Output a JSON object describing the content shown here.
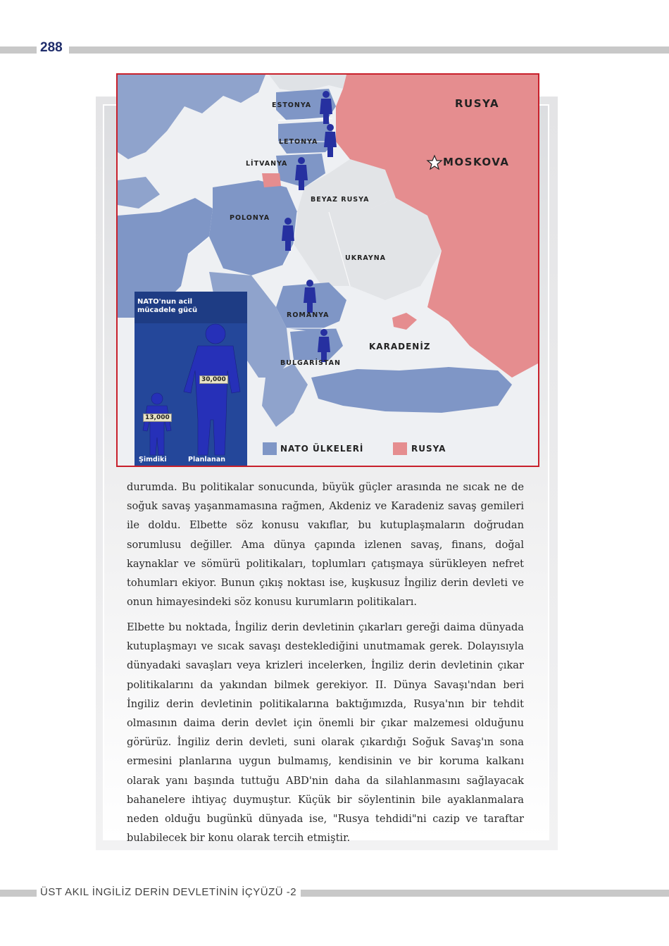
{
  "page": {
    "number": "288",
    "footer_title": "ÜST AKIL İNGİLİZ DERİN DEVLETİNİN İÇYÜZÜ -2"
  },
  "colors": {
    "nato": "#7f96c6",
    "russia": "#e58d8f",
    "neutral": "#e2e4e7",
    "soldier": "#2630a0",
    "border_red": "#c8202b"
  },
  "map": {
    "labels": {
      "estonya": "ESTONYA",
      "letonya": "LETONYA",
      "litvanya": "LİTVANYA",
      "beyaz_rusya": "BEYAZ RUSYA",
      "polonya": "POLONYA",
      "ukrayna": "UKRAYNA",
      "romanya": "ROMANYA",
      "bulgaristan": "BULGARİSTAN",
      "karadeniz": "KARADENİZ",
      "rusya": "RUSYA",
      "moskova": "MOSKOVA"
    },
    "legend": {
      "nato": "NATO ÜLKELERİ",
      "russia": "RUSYA"
    },
    "inset": {
      "title": "NATO'nun acil mücadele gücü",
      "current_value": "13,000",
      "planned_value": "30,000",
      "current_label": "Şimdiki",
      "planned_label": "Planlanan"
    }
  },
  "paragraphs": [
    "durumda. Bu politikalar sonucunda, büyük güçler arasında ne sıcak ne de soğuk savaş yaşanmamasına rağmen, Akdeniz ve Karadeniz savaş gemileri ile doldu. Elbette söz konusu vakıflar, bu kutuplaşmaların doğrudan sorumlusu değiller. Ama dünya çapında izlenen savaş, finans, doğal kaynaklar ve sömürü politikaları, toplumları çatışmaya sürükleyen nefret tohumları ekiyor. Bunun çıkış noktası ise, kuşkusuz İngiliz derin devleti ve onun himayesindeki söz konusu kurumların politikaları.",
    "Elbette bu noktada, İngiliz derin devletinin çıkarları gereği daima dünyada kutuplaşmayı ve sıcak savaşı desteklediğini unutmamak gerek. Dolayısıyla dünyadaki savaşları veya krizleri incelerken, İngiliz derin devletinin çıkar politikalarını da yakından bilmek gerekiyor. II. Dünya Savaşı'ndan beri İngiliz derin devletinin politikalarına baktığımızda, Rusya'nın bir tehdit olmasının daima derin devlet için önemli bir çıkar malzemesi olduğunu görürüz. İngiliz derin devleti, suni olarak çıkardığı Soğuk Savaş'ın sona ermesini planlarına uygun bulmamış, kendisinin ve bir koruma kalkanı olarak yanı başında tuttuğu ABD'nin daha da silahlanmasını sağlayacak bahanelere ihtiyaç duymuştur. Küçük bir söylentinin bile ayaklanmalara neden olduğu bugünkü dünyada ise, \"Rusya tehdidi\"ni cazip ve taraftar bulabilecek bir konu olarak tercih etmiştir."
  ]
}
